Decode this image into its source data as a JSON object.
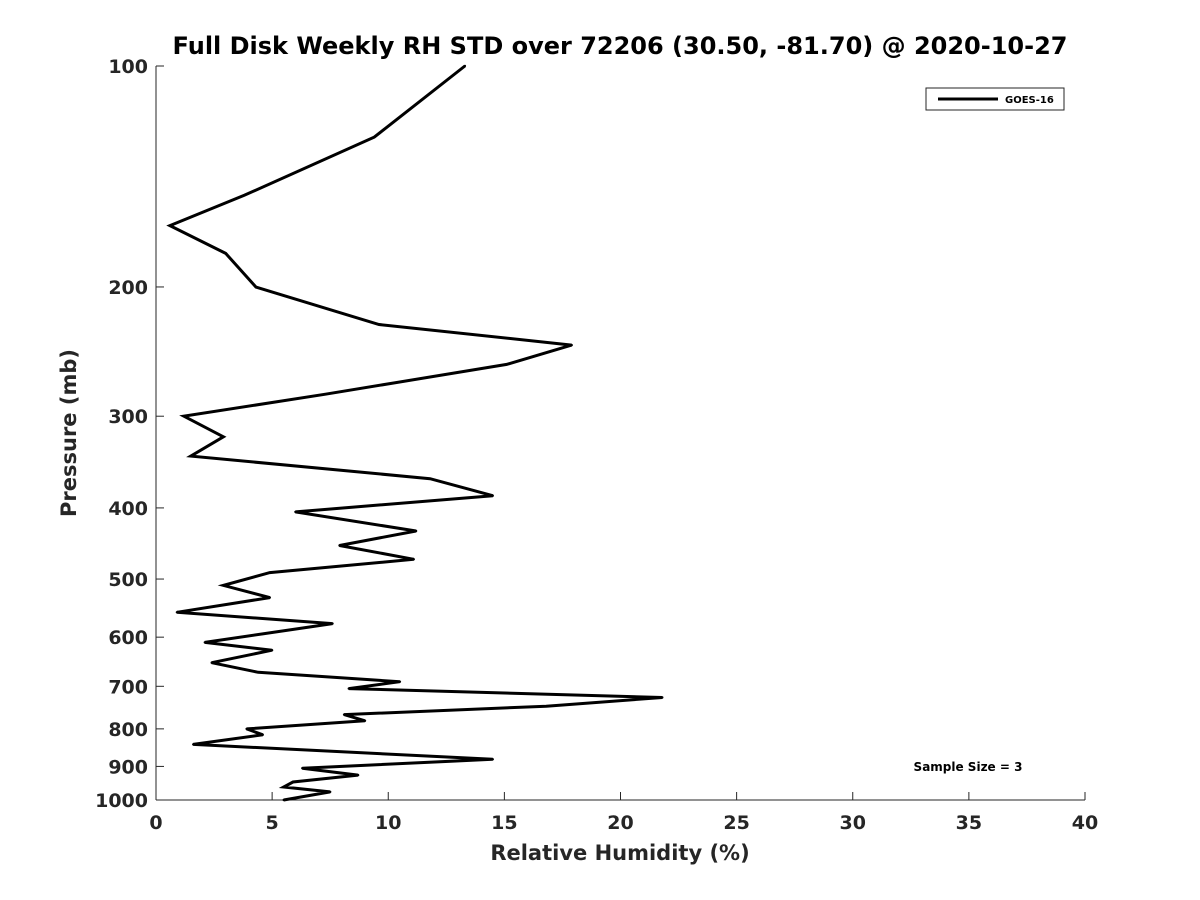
{
  "chart_data": {
    "type": "line",
    "title": "Full Disk Weekly RH STD over 72206 (30.50, -81.70) @ 2020-10-27",
    "xlabel": "Relative Humidity (%)",
    "ylabel": "Pressure (mb)",
    "xlim": [
      0,
      40
    ],
    "ylim": [
      100,
      1000
    ],
    "yscale": "log",
    "yreversed": true,
    "grid": false,
    "legend_position": "top-right",
    "x_ticks": [
      "0",
      "5",
      "10",
      "15",
      "20",
      "25",
      "30",
      "35",
      "40"
    ],
    "y_ticks": [
      "100",
      "200",
      "300",
      "400",
      "500",
      "600",
      "700",
      "800",
      "900",
      "1000"
    ],
    "series": [
      {
        "name": "GOES-16",
        "color": "#000000",
        "points": [
          [
            13.3,
            100
          ],
          [
            9.4,
            125
          ],
          [
            3.8,
            150
          ],
          [
            0.6,
            165
          ],
          [
            3.0,
            180
          ],
          [
            4.3,
            200
          ],
          [
            9.6,
            225
          ],
          [
            17.9,
            240
          ],
          [
            15.1,
            255
          ],
          [
            7.3,
            280
          ],
          [
            1.2,
            300
          ],
          [
            2.9,
            320
          ],
          [
            1.5,
            340
          ],
          [
            11.8,
            365
          ],
          [
            14.5,
            385
          ],
          [
            6.0,
            405
          ],
          [
            11.2,
            430
          ],
          [
            7.9,
            450
          ],
          [
            11.1,
            470
          ],
          [
            4.9,
            490
          ],
          [
            2.9,
            510
          ],
          [
            4.9,
            530
          ],
          [
            0.9,
            555
          ],
          [
            7.6,
            575
          ],
          [
            2.1,
            610
          ],
          [
            5.0,
            625
          ],
          [
            2.4,
            650
          ],
          [
            4.4,
            670
          ],
          [
            10.5,
            690
          ],
          [
            8.3,
            705
          ],
          [
            21.8,
            725
          ],
          [
            16.8,
            745
          ],
          [
            8.1,
            765
          ],
          [
            9.0,
            780
          ],
          [
            3.9,
            800
          ],
          [
            4.6,
            815
          ],
          [
            1.6,
            840
          ],
          [
            14.5,
            880
          ],
          [
            6.3,
            905
          ],
          [
            8.7,
            925
          ],
          [
            5.9,
            945
          ],
          [
            5.5,
            960
          ],
          [
            7.5,
            975
          ],
          [
            5.5,
            1000
          ]
        ]
      }
    ],
    "annotations": [
      "Sample Size = 3"
    ]
  }
}
